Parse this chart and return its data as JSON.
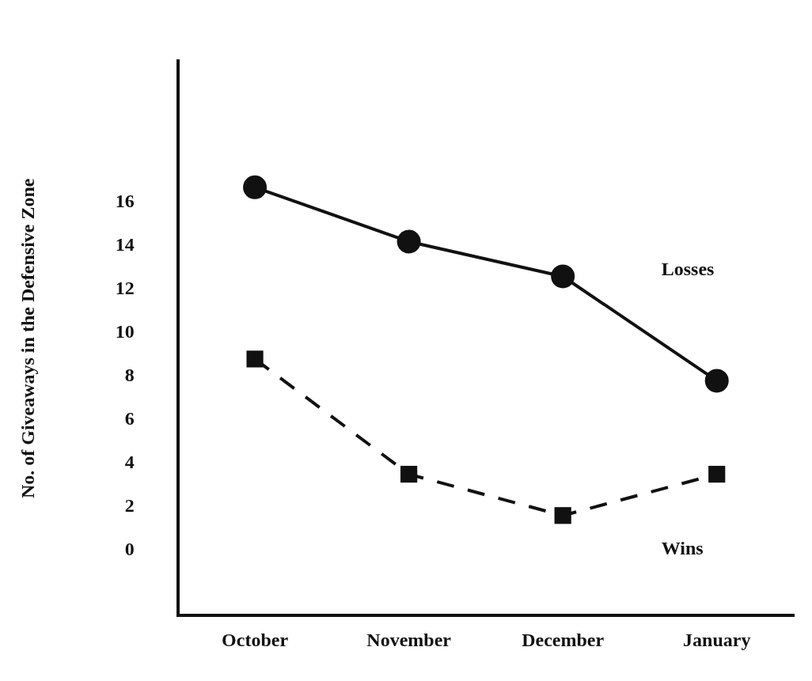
{
  "chart_data": {
    "type": "line",
    "ylabel": "No. of Giveaways in the Defensive Zone",
    "categories": [
      "October",
      "November",
      "December",
      "January"
    ],
    "series": [
      {
        "name": "Losses",
        "color": "#111111",
        "values": [
          16.7,
          14.2,
          12.6,
          7.8
        ],
        "marker": "circle",
        "line_style": "solid"
      },
      {
        "name": "Wins",
        "color": "#111111",
        "values": [
          8.8,
          3.5,
          1.6,
          3.5
        ],
        "marker": "square",
        "line_style": "dashed"
      }
    ],
    "ylim": [
      -3,
      22.5
    ],
    "yticks": [
      0,
      2,
      4,
      6,
      8,
      10,
      12,
      14,
      16
    ],
    "grid": false,
    "legend": false
  }
}
